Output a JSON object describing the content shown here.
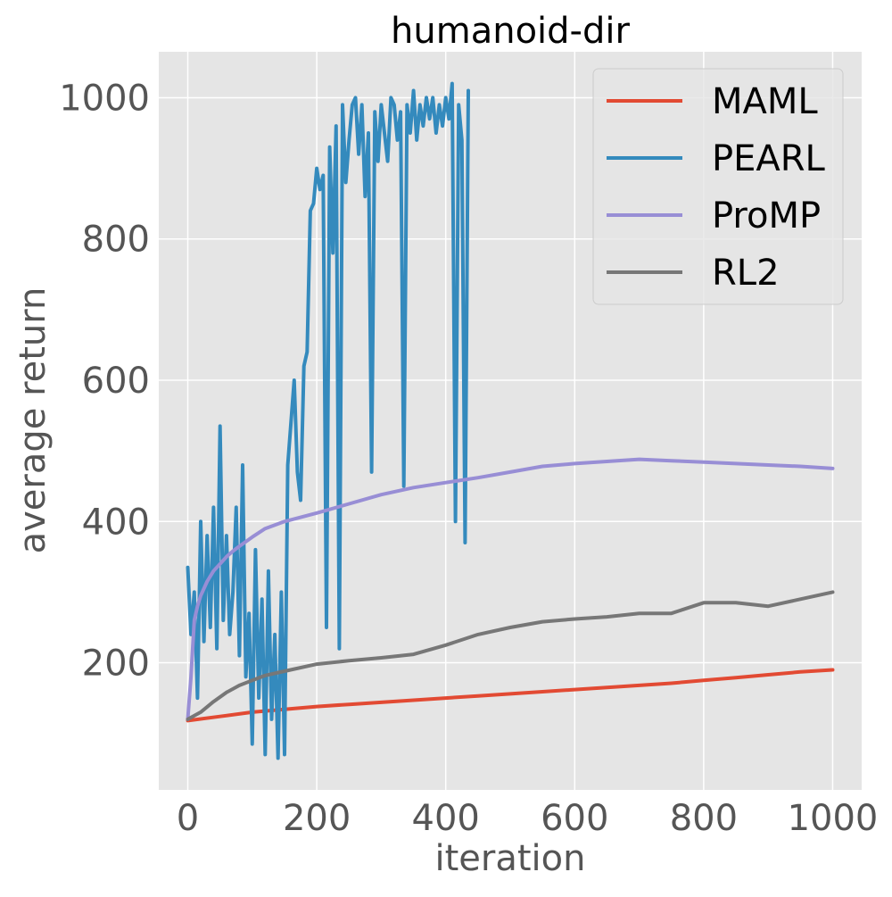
{
  "chart_data": {
    "type": "line",
    "title": "humanoid-dir",
    "xlabel": "iteration",
    "ylabel": "average return",
    "xlim": [
      -45,
      1045
    ],
    "ylim": [
      20,
      1065
    ],
    "xticks": [
      0,
      200,
      400,
      600,
      800,
      1000
    ],
    "yticks": [
      200,
      400,
      600,
      800,
      1000
    ],
    "grid": true,
    "legend_position": "top-right",
    "background": "#e5e5e5",
    "series": [
      {
        "name": "MAML",
        "color": "#e24a33",
        "x": [
          0,
          50,
          100,
          150,
          200,
          250,
          300,
          350,
          400,
          450,
          500,
          550,
          600,
          650,
          700,
          750,
          800,
          850,
          900,
          950,
          1000
        ],
        "y": [
          118,
          124,
          130,
          134,
          138,
          141,
          144,
          147,
          150,
          153,
          156,
          159,
          162,
          165,
          168,
          171,
          175,
          179,
          183,
          187,
          190
        ]
      },
      {
        "name": "PEARL",
        "color": "#348abd",
        "x": [
          0,
          5,
          10,
          15,
          20,
          25,
          30,
          35,
          40,
          45,
          50,
          55,
          60,
          65,
          70,
          75,
          80,
          85,
          90,
          95,
          100,
          105,
          110,
          115,
          120,
          125,
          130,
          135,
          140,
          145,
          150,
          155,
          160,
          165,
          170,
          175,
          180,
          185,
          190,
          195,
          200,
          205,
          210,
          215,
          220,
          225,
          230,
          235,
          240,
          245,
          250,
          255,
          260,
          265,
          270,
          275,
          280,
          285,
          290,
          295,
          300,
          305,
          310,
          315,
          320,
          325,
          330,
          335,
          340,
          345,
          350,
          355,
          360,
          365,
          370,
          375,
          380,
          385,
          390,
          395,
          400,
          405,
          410,
          415,
          420,
          425,
          430,
          435
        ],
        "y": [
          335,
          240,
          300,
          150,
          400,
          230,
          380,
          250,
          420,
          220,
          535,
          260,
          380,
          240,
          300,
          420,
          210,
          480,
          180,
          270,
          85,
          360,
          150,
          290,
          70,
          330,
          120,
          240,
          65,
          300,
          70,
          480,
          540,
          600,
          470,
          430,
          620,
          640,
          840,
          850,
          900,
          870,
          890,
          250,
          930,
          780,
          960,
          220,
          990,
          880,
          940,
          990,
          1000,
          920,
          990,
          860,
          950,
          470,
          980,
          910,
          990,
          950,
          910,
          1000,
          990,
          940,
          980,
          450,
          990,
          950,
          1010,
          940,
          990,
          960,
          1000,
          970,
          1000,
          950,
          990,
          960,
          1000,
          970,
          1020,
          400,
          990,
          940,
          370,
          1010
        ]
      },
      {
        "name": "ProMP",
        "color": "#988ed5",
        "x": [
          0,
          5,
          10,
          15,
          20,
          25,
          30,
          40,
          50,
          60,
          70,
          80,
          100,
          120,
          150,
          200,
          250,
          300,
          350,
          400,
          450,
          500,
          550,
          600,
          650,
          700,
          750,
          800,
          850,
          900,
          950,
          1000
        ],
        "y": [
          120,
          180,
          260,
          280,
          295,
          305,
          315,
          330,
          340,
          350,
          358,
          365,
          378,
          390,
          400,
          412,
          425,
          438,
          448,
          455,
          462,
          470,
          478,
          482,
          485,
          488,
          486,
          484,
          482,
          480,
          478,
          475
        ]
      },
      {
        "name": "RL2",
        "color": "#777777",
        "x": [
          0,
          20,
          40,
          60,
          80,
          100,
          120,
          150,
          200,
          250,
          300,
          350,
          400,
          450,
          500,
          550,
          600,
          650,
          700,
          750,
          800,
          850,
          900,
          950,
          1000
        ],
        "y": [
          120,
          130,
          145,
          158,
          168,
          175,
          182,
          188,
          198,
          203,
          207,
          212,
          225,
          240,
          250,
          258,
          262,
          265,
          270,
          270,
          285,
          285,
          280,
          290,
          300
        ]
      }
    ]
  }
}
